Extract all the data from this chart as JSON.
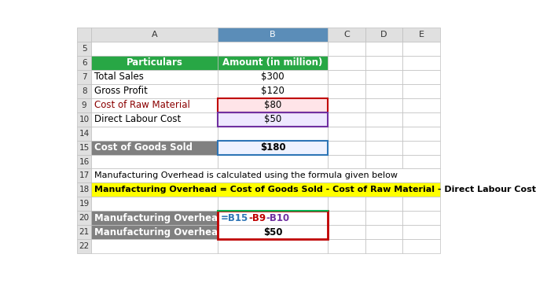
{
  "col_headers": [
    "",
    "A",
    "B",
    "C",
    "D",
    "E"
  ],
  "rows": [
    {
      "row_num": 5,
      "cells": []
    },
    {
      "row_num": 6,
      "cells": [
        {
          "col": "A",
          "text": "Particulars",
          "bg": "#28A745",
          "fg": "white",
          "bold": true,
          "align": "center"
        },
        {
          "col": "B",
          "text": "Amount (in million)",
          "bg": "#28A745",
          "fg": "white",
          "bold": true,
          "align": "center"
        }
      ]
    },
    {
      "row_num": 7,
      "cells": [
        {
          "col": "A",
          "text": "Total Sales",
          "bg": "white",
          "fg": "black",
          "bold": false,
          "align": "left"
        },
        {
          "col": "B",
          "text": "$300",
          "bg": "white",
          "fg": "black",
          "bold": false,
          "align": "center"
        }
      ]
    },
    {
      "row_num": 8,
      "cells": [
        {
          "col": "A",
          "text": "Gross Profit",
          "bg": "white",
          "fg": "black",
          "bold": false,
          "align": "left"
        },
        {
          "col": "B",
          "text": "$120",
          "bg": "white",
          "fg": "black",
          "bold": false,
          "align": "center"
        }
      ]
    },
    {
      "row_num": 9,
      "cells": [
        {
          "col": "A",
          "text": "Cost of Raw Material",
          "bg": "white",
          "fg": "#8B0000",
          "bold": false,
          "align": "left"
        },
        {
          "col": "B",
          "text": "$80",
          "bg": "#FFE4E8",
          "fg": "black",
          "bold": false,
          "align": "center"
        }
      ]
    },
    {
      "row_num": 10,
      "cells": [
        {
          "col": "A",
          "text": "Direct Labour Cost",
          "bg": "white",
          "fg": "black",
          "bold": false,
          "align": "left"
        },
        {
          "col": "B",
          "text": "$50",
          "bg": "#EEE8FF",
          "fg": "black",
          "bold": false,
          "align": "center"
        }
      ]
    },
    {
      "row_num": 14,
      "cells": []
    },
    {
      "row_num": 15,
      "cells": [
        {
          "col": "A",
          "text": "Cost of Goods Sold",
          "bg": "#808080",
          "fg": "white",
          "bold": true,
          "align": "left"
        },
        {
          "col": "B",
          "text": "$180",
          "bg": "#EEF2FF",
          "fg": "black",
          "bold": true,
          "align": "center"
        }
      ]
    },
    {
      "row_num": 16,
      "cells": []
    },
    {
      "row_num": 17,
      "cells": [
        {
          "col": "A",
          "text": "Manufacturing Overhead is calculated using the formula given below",
          "bg": "white",
          "fg": "black",
          "bold": false,
          "align": "left",
          "span": true
        }
      ]
    },
    {
      "row_num": 18,
      "cells": [
        {
          "col": "A",
          "text": "Manufacturing Overhead = Cost of Goods Sold - Cost of Raw Material - Direct Labour Cost",
          "bg": "#FFFF00",
          "fg": "black",
          "bold": true,
          "align": "left",
          "span": true
        }
      ]
    },
    {
      "row_num": 19,
      "cells": []
    },
    {
      "row_num": 20,
      "cells": [
        {
          "col": "A",
          "text": "Manufacturing Overhead Formula",
          "bg": "#808080",
          "fg": "white",
          "bold": true,
          "align": "left"
        },
        {
          "col": "B",
          "text": "=B15-B9-B10",
          "bg": "white",
          "fg": "black",
          "bold": false,
          "align": "left",
          "formula_parts": [
            {
              "text": "=B15",
              "color": "#2E75B6"
            },
            {
              "text": "-B9",
              "color": "#C00000"
            },
            {
              "text": "-B10",
              "color": "#7030A0"
            }
          ]
        }
      ]
    },
    {
      "row_num": 21,
      "cells": [
        {
          "col": "A",
          "text": "Manufacturing Overhead",
          "bg": "#808080",
          "fg": "white",
          "bold": true,
          "align": "left"
        },
        {
          "col": "B",
          "text": "$50",
          "bg": "white",
          "fg": "black",
          "bold": true,
          "align": "center"
        }
      ]
    },
    {
      "row_num": 22,
      "cells": []
    }
  ],
  "header_bg_default": "#E0E0E0",
  "header_bg_selected": "#5B8DB8",
  "header_fg_selected": "white",
  "header_fg_default": "#333333",
  "grid_color": "#BFBFBF",
  "border_b9": "#C00000",
  "border_b10": "#7030A0",
  "border_b15": "#2E75B6",
  "border_b2021": "#C00000",
  "sep_line_color": "#00B050"
}
